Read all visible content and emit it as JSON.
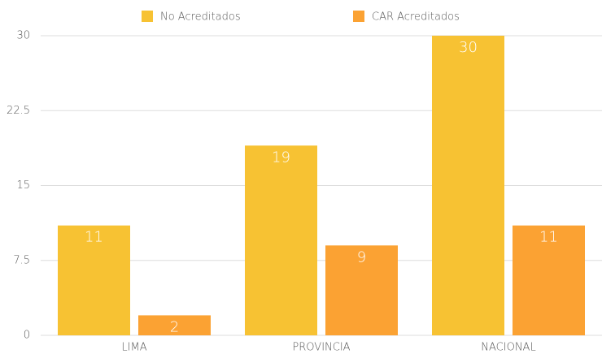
{
  "chart_data": {
    "type": "bar",
    "categories": [
      "LIMA",
      "PROVINCIA",
      "NACIONAL"
    ],
    "series": [
      {
        "name": "No Acreditados",
        "color": "#f7c233",
        "values": [
          11,
          19,
          30
        ]
      },
      {
        "name": "CAR Acreditados",
        "color": "#fba233",
        "values": [
          2,
          9,
          11
        ]
      }
    ],
    "ylim": [
      0,
      30
    ],
    "yticks": [
      0,
      7.5,
      15,
      22.5,
      30
    ],
    "grid": true,
    "legend": "top"
  }
}
